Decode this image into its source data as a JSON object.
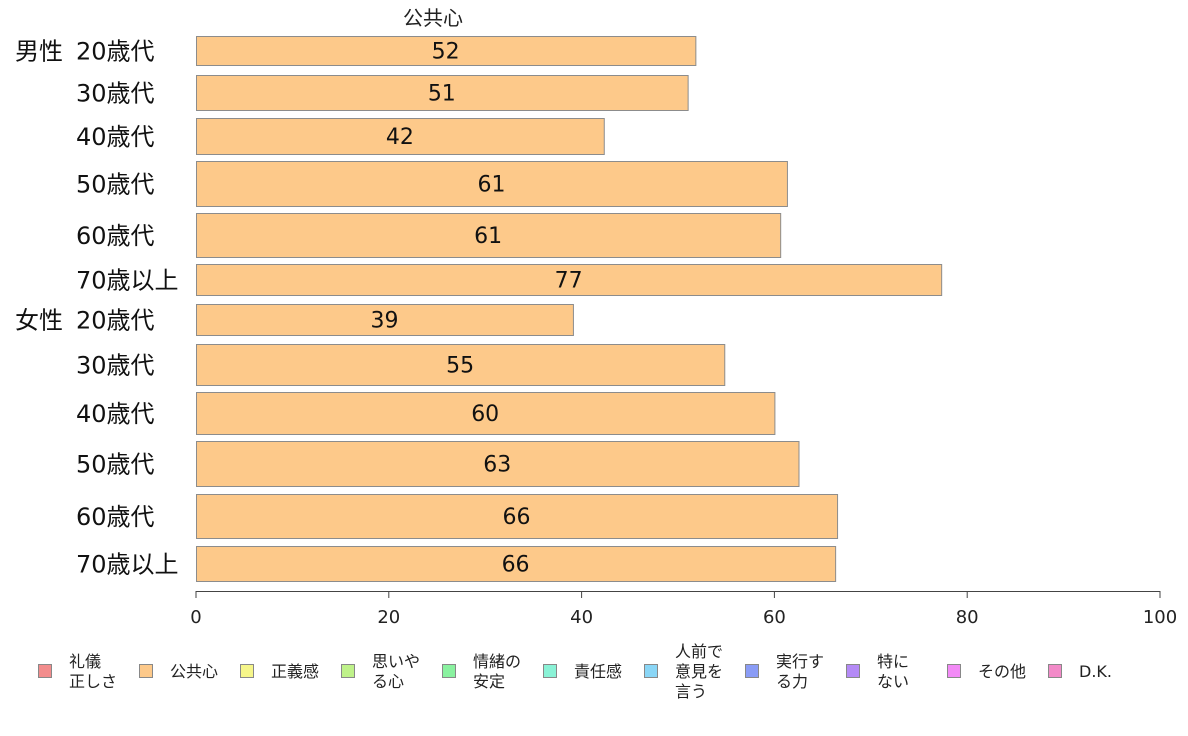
{
  "chart_data": {
    "type": "bar",
    "orientation": "horizontal",
    "title": "公共心",
    "groups": [
      {
        "label": "男性",
        "categories": [
          "20歳代",
          "30歳代",
          "40歳代",
          "50歳代",
          "60歳代",
          "70歳以上"
        ],
        "values": [
          52,
          51,
          42,
          61,
          61,
          77
        ]
      },
      {
        "label": "女性",
        "categories": [
          "20歳代",
          "30歳代",
          "40歳代",
          "50歳代",
          "60歳代",
          "70歳以上"
        ],
        "values": [
          39,
          55,
          60,
          63,
          66,
          66
        ]
      }
    ],
    "bar_values_precise": [
      51.8,
      51.0,
      42.3,
      61.3,
      60.6,
      77.3,
      39.1,
      54.8,
      60.0,
      62.5,
      66.5,
      66.3
    ],
    "xlim": [
      0,
      100
    ],
    "xticks": [
      0,
      20,
      40,
      60,
      80,
      100
    ],
    "grid": false,
    "bar_color": "#fdc98a",
    "legend_position": "bottom",
    "legend": [
      {
        "label": "礼儀\n正しさ",
        "color": "#f28c8c"
      },
      {
        "label": "公共心",
        "color": "#fdc98a"
      },
      {
        "label": "正義感",
        "color": "#f6f68a"
      },
      {
        "label": "思いや\nる心",
        "color": "#bff28a"
      },
      {
        "label": "情緒の\n安定",
        "color": "#8af2a0"
      },
      {
        "label": "責任感",
        "color": "#8af2d6"
      },
      {
        "label": "人前で\n意見を\n言う",
        "color": "#8ad6f6"
      },
      {
        "label": "実行す\nる力",
        "color": "#8a9cf6"
      },
      {
        "label": "特に\nない",
        "color": "#b48af6"
      },
      {
        "label": "その他",
        "color": "#f28af6"
      },
      {
        "label": "D.K.",
        "color": "#f28ac8"
      }
    ]
  }
}
